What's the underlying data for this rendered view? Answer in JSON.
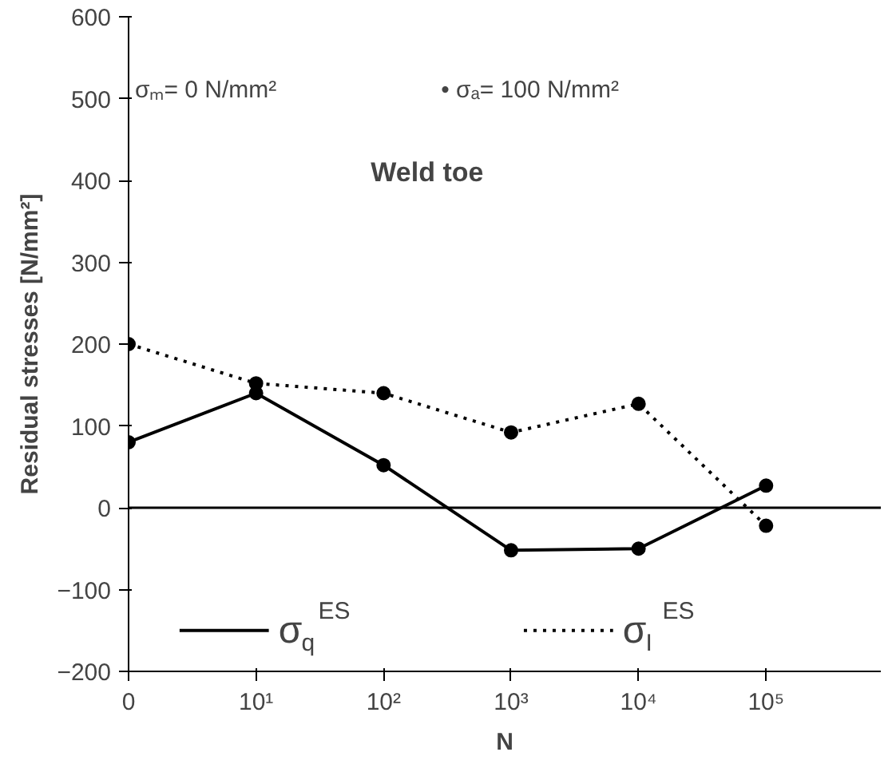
{
  "chart_data": {
    "type": "line",
    "ylabel": "Residual stresses [N/mm²]",
    "xlabel": "N",
    "categories": [
      "0",
      "10¹",
      "10²",
      "10³",
      "10⁴",
      "10⁵"
    ],
    "ylim": [
      -200,
      600
    ],
    "yticks": [
      -200,
      -100,
      0,
      100,
      200,
      300,
      400,
      500,
      600
    ],
    "series": [
      {
        "name": "σ$_{q}$$^{ES}$",
        "color": "#000000",
        "line_style": "solid",
        "values": [
          80,
          140,
          52,
          -52,
          -50,
          27
        ]
      },
      {
        "name": "σ$_{I}$$^{ES}$",
        "color": "#000000",
        "line_style": "dotted",
        "values": [
          200,
          152,
          140,
          92,
          127,
          -22
        ]
      }
    ],
    "marker": "circle",
    "grid": false,
    "legend": "bottom",
    "ref_lines": [
      {
        "axis": "y",
        "value": 0,
        "color": "#000000",
        "line_style": "solid"
      }
    ],
    "annotations": [
      {
        "text": "σₘ= 0 N/mm²"
      },
      {
        "text": "• σₐ= 100 N/mm²"
      },
      {
        "text": "Weld toe"
      }
    ]
  }
}
